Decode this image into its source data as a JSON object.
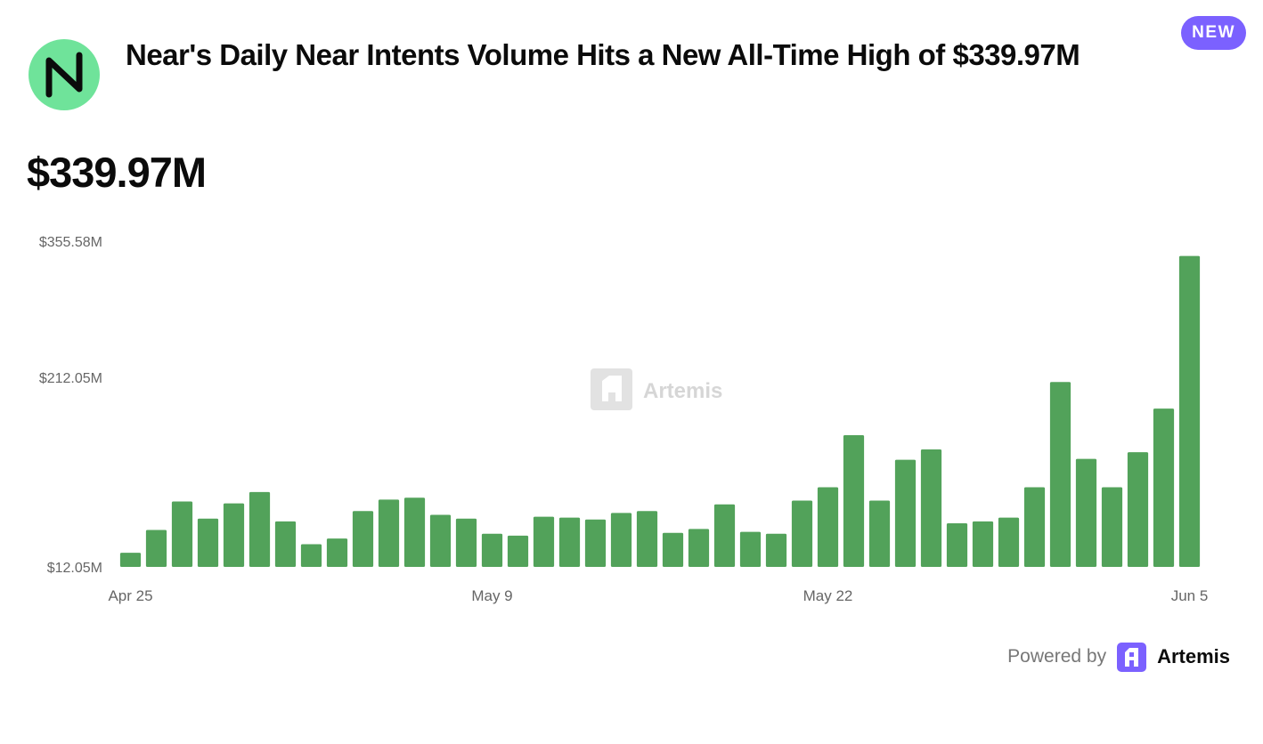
{
  "header": {
    "title": "Near's Daily Near Intents Volume Hits a New All-Time High of $339.97M",
    "badge": "NEW",
    "logo_icon": "near-protocol-logo-icon",
    "logo_color": "#6fe39a"
  },
  "headline_value": "$339.97M",
  "watermark": {
    "icon": "artemis-logo-icon",
    "text": "Artemis"
  },
  "footer": {
    "powered_by": "Powered by",
    "brand": "Artemis",
    "brand_icon": "artemis-logo-icon",
    "brand_color": "#7b61ff"
  },
  "chart_data": {
    "type": "bar",
    "title": "",
    "xlabel": "",
    "ylabel": "",
    "bar_color": "#52a25a",
    "grid": false,
    "legend": "none",
    "ylim": [
      12.05,
      355.58
    ],
    "y_ticks": [
      "$355.58M",
      "$212.05M",
      "$12.05M"
    ],
    "y_tick_values": [
      355.58,
      212.05,
      12.05
    ],
    "x_ticks": [
      "Apr 25",
      "May 9",
      "May 22",
      "Jun 5"
    ],
    "x_tick_indices": [
      0,
      14,
      27,
      41
    ],
    "x": [
      "Apr 25",
      "Apr 26",
      "Apr 27",
      "Apr 28",
      "Apr 29",
      "Apr 30",
      "May 1",
      "May 2",
      "May 3",
      "May 4",
      "May 5",
      "May 6",
      "May 7",
      "May 8",
      "May 9",
      "May 10",
      "May 11",
      "May 12",
      "May 13",
      "May 14",
      "May 15",
      "May 16",
      "May 17",
      "May 18",
      "May 19",
      "May 20",
      "May 21",
      "May 22",
      "May 23",
      "May 24",
      "May 25",
      "May 26",
      "May 27",
      "May 28",
      "May 29",
      "May 30",
      "May 31",
      "Jun 1",
      "Jun 2",
      "Jun 3",
      "Jun 4",
      "Jun 5"
    ],
    "values": [
      27,
      51,
      81,
      63,
      79,
      91,
      60,
      36,
      42,
      71,
      83,
      85,
      67,
      63,
      47,
      45,
      65,
      64,
      62,
      69,
      71,
      48,
      52,
      78,
      49,
      47,
      82,
      96,
      151,
      82,
      125,
      136,
      58,
      60,
      64,
      96,
      207,
      126,
      96,
      133,
      179,
      339.97
    ]
  }
}
